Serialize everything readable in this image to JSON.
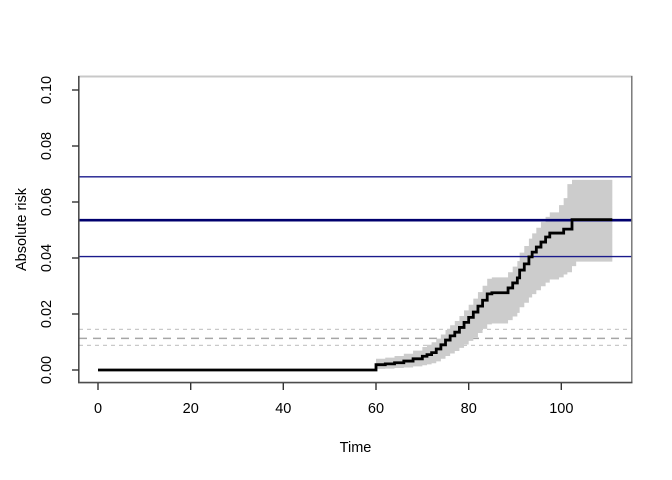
{
  "figure": {
    "background": "#ffffff",
    "description": "Base-R style step plot of cumulative absolute risk over time with gray confidence band and horizontal reference lines"
  },
  "chart_data": {
    "type": "line",
    "subtype": "step-function-with-confidence-band",
    "title": "",
    "xlabel": "Time",
    "ylabel": "Absolute risk",
    "xlim": [
      -4.5,
      115.5
    ],
    "ylim": [
      -0.0046,
      0.1055
    ],
    "grid": false,
    "legend": null,
    "xticks": [
      0,
      20,
      40,
      60,
      80,
      100
    ],
    "xtick_labels": [
      "0",
      "20",
      "40",
      "60",
      "80",
      "100"
    ],
    "yticks": [
      0.0,
      0.02,
      0.04,
      0.06,
      0.08,
      0.1
    ],
    "ytick_labels": [
      "0.00",
      "0.02",
      "0.04",
      "0.06",
      "0.08",
      "0.10"
    ],
    "colors": {
      "curve": "#000000",
      "band": "#cccccc",
      "navy_line": "#1a1a8c",
      "navy_line_bold": "#00006e",
      "dash_light": "#c9c9c9",
      "dash_dark": "#a6a6a6",
      "box_top": "#c8c8c8",
      "box_right": "#707070",
      "axis": "#4d4d4d",
      "tick": "#333333"
    },
    "step_points": {
      "columns": [
        "time",
        "estimate",
        "lower_ci",
        "upper_ci"
      ],
      "rows": [
        [
          0,
          0.0,
          0.0,
          0.0
        ],
        [
          60,
          0.0019,
          0.0004,
          0.004
        ],
        [
          62,
          0.0022,
          0.0005,
          0.0044
        ],
        [
          64,
          0.0026,
          0.0007,
          0.005
        ],
        [
          66,
          0.0032,
          0.0009,
          0.0058
        ],
        [
          68,
          0.004,
          0.0013,
          0.0069
        ],
        [
          70,
          0.0049,
          0.0017,
          0.0082
        ],
        [
          71,
          0.0055,
          0.002,
          0.009
        ],
        [
          72,
          0.0062,
          0.0024,
          0.0099
        ],
        [
          73,
          0.0075,
          0.0031,
          0.0112
        ],
        [
          74,
          0.009,
          0.004,
          0.0127
        ],
        [
          75,
          0.0107,
          0.005,
          0.0143
        ],
        [
          76,
          0.0122,
          0.0059,
          0.016
        ],
        [
          77,
          0.0135,
          0.0068,
          0.0175
        ],
        [
          78,
          0.0152,
          0.0079,
          0.0193
        ],
        [
          79,
          0.017,
          0.0091,
          0.0213
        ],
        [
          80,
          0.0188,
          0.0104,
          0.0233
        ],
        [
          81,
          0.0207,
          0.0117,
          0.0255
        ],
        [
          82,
          0.0228,
          0.0132,
          0.0278
        ],
        [
          83,
          0.0249,
          0.0147,
          0.0301
        ],
        [
          84,
          0.0272,
          0.0163,
          0.0326
        ],
        [
          85,
          0.0276,
          0.0166,
          0.0331
        ],
        [
          88.5,
          0.0293,
          0.0178,
          0.0349
        ],
        [
          89.5,
          0.0311,
          0.0191,
          0.0369
        ],
        [
          90.5,
          0.0329,
          0.0204,
          0.0389
        ],
        [
          91,
          0.0357,
          0.0224,
          0.0419
        ],
        [
          92,
          0.0379,
          0.024,
          0.0443
        ],
        [
          93,
          0.0404,
          0.0259,
          0.0469
        ],
        [
          93.7,
          0.0421,
          0.0271,
          0.0488
        ],
        [
          94.6,
          0.0439,
          0.0285,
          0.0508
        ],
        [
          95.6,
          0.0457,
          0.0299,
          0.0528
        ],
        [
          96.6,
          0.0475,
          0.0312,
          0.0547
        ],
        [
          97.5,
          0.0489,
          0.0323,
          0.0563
        ],
        [
          99.5,
          0.0489,
          0.0331,
          0.0589
        ],
        [
          100.5,
          0.0503,
          0.0341,
          0.0614
        ],
        [
          101.3,
          0.0503,
          0.0349,
          0.0664
        ],
        [
          102.3,
          0.0537,
          0.0371,
          0.0679
        ],
        [
          103.2,
          0.0537,
          0.0387,
          0.0679
        ]
      ],
      "end_time": 111
    },
    "reference_lines": [
      {
        "name": "gray-dashed-upper",
        "value": 0.0145,
        "style": "dashed",
        "dash": "4,4",
        "width": 1.3,
        "color": "#c9c9c9"
      },
      {
        "name": "gray-dashed-mid",
        "value": 0.0113,
        "style": "dashed",
        "dash": "8,6",
        "width": 1.5,
        "color": "#a6a6a6"
      },
      {
        "name": "gray-dashed-lower",
        "value": 0.0088,
        "style": "dashed",
        "dash": "4,4",
        "width": 1.3,
        "color": "#c9c9c9"
      },
      {
        "name": "navy-upper",
        "value": 0.069,
        "style": "solid",
        "dash": "",
        "width": 1.4,
        "color": "#1a1a8c"
      },
      {
        "name": "navy-estimate",
        "value": 0.0535,
        "style": "solid",
        "dash": "",
        "width": 2.6,
        "color": "#00006e"
      },
      {
        "name": "navy-lower",
        "value": 0.0405,
        "style": "solid",
        "dash": "",
        "width": 1.4,
        "color": "#1a1a8c"
      }
    ]
  }
}
